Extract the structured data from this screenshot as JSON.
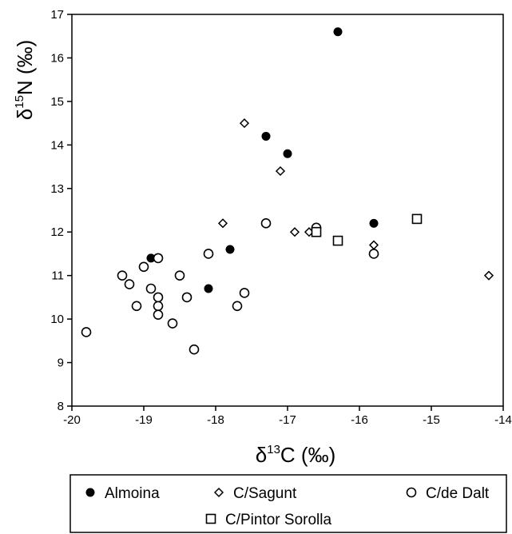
{
  "chart_data": {
    "type": "scatter",
    "xlabel": {
      "prefix": "δ",
      "sup": "13",
      "main": "C (‰)"
    },
    "ylabel": {
      "prefix": "δ",
      "sup": "15",
      "main": "N (‰)"
    },
    "xlim": [
      -20,
      -14
    ],
    "ylim": [
      8,
      17
    ],
    "xticks": [
      -20,
      -19,
      -18,
      -17,
      -16,
      -15,
      -14
    ],
    "yticks": [
      8,
      9,
      10,
      11,
      12,
      13,
      14,
      15,
      16,
      17
    ],
    "grid": false,
    "legend_position": "bottom",
    "series": [
      {
        "name": "Almoina",
        "marker": "filled-circle",
        "color": "#000000",
        "points": [
          [
            -16.3,
            16.6
          ],
          [
            -17.3,
            14.2
          ],
          [
            -17.0,
            13.8
          ],
          [
            -15.8,
            12.2
          ],
          [
            -17.8,
            11.6
          ],
          [
            -18.9,
            11.4
          ],
          [
            -18.1,
            10.7
          ]
        ]
      },
      {
        "name": "C/Sagunt",
        "marker": "open-diamond",
        "color": "#000000",
        "points": [
          [
            -17.6,
            14.5
          ],
          [
            -17.1,
            13.4
          ],
          [
            -17.9,
            12.2
          ],
          [
            -16.9,
            12.0
          ],
          [
            -16.7,
            12.0
          ],
          [
            -15.8,
            11.7
          ],
          [
            -14.2,
            11.0
          ]
        ]
      },
      {
        "name": "C/de Dalt",
        "marker": "open-circle",
        "color": "#000000",
        "points": [
          [
            -17.3,
            12.2
          ],
          [
            -16.6,
            12.1
          ],
          [
            -15.8,
            11.5
          ],
          [
            -18.1,
            11.5
          ],
          [
            -18.8,
            11.4
          ],
          [
            -19.0,
            11.2
          ],
          [
            -19.3,
            11.0
          ],
          [
            -18.5,
            11.0
          ],
          [
            -19.2,
            10.8
          ],
          [
            -18.9,
            10.7
          ],
          [
            -17.6,
            10.6
          ],
          [
            -18.8,
            10.5
          ],
          [
            -18.4,
            10.5
          ],
          [
            -19.1,
            10.3
          ],
          [
            -18.8,
            10.3
          ],
          [
            -17.7,
            10.3
          ],
          [
            -18.8,
            10.1
          ],
          [
            -18.6,
            9.9
          ],
          [
            -19.8,
            9.7
          ],
          [
            -18.3,
            9.3
          ]
        ]
      },
      {
        "name": "C/Pintor Sorolla",
        "marker": "open-square",
        "color": "#000000",
        "points": [
          [
            -15.2,
            12.3
          ],
          [
            -16.6,
            12.0
          ],
          [
            -16.3,
            11.8
          ]
        ]
      }
    ]
  }
}
